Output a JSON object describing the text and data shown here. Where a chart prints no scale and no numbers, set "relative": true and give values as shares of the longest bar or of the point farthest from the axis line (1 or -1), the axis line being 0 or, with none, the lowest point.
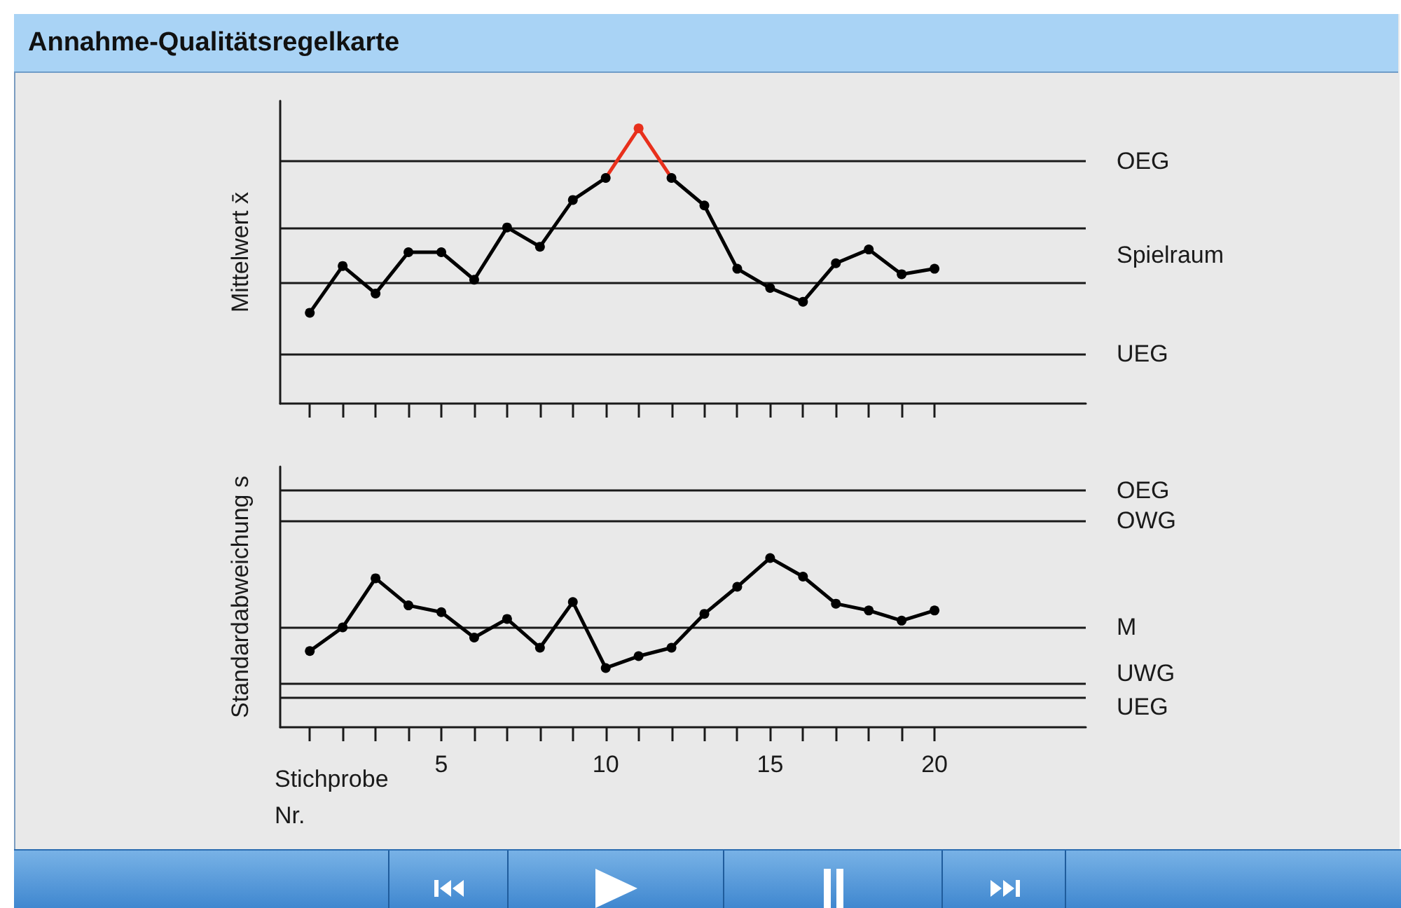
{
  "chart_data": [
    {
      "type": "line",
      "title": "Annahme-Qualitätsregelkarte",
      "ylabel": "Mittelwert x̄",
      "relative": true,
      "x": [
        1,
        2,
        3,
        4,
        5,
        6,
        7,
        8,
        9,
        10,
        11,
        12,
        13,
        14,
        15,
        16,
        17,
        18,
        19,
        20
      ],
      "xlim": [
        0.1,
        24.6
      ],
      "xticks": [
        {
          "value": 1,
          "label": null
        },
        {
          "value": 2,
          "label": null
        },
        {
          "value": 3,
          "label": null
        },
        {
          "value": 4,
          "label": null
        },
        5,
        {
          "value": 6,
          "label": null
        },
        {
          "value": 7,
          "label": null
        },
        {
          "value": 8,
          "label": null
        },
        {
          "value": 9,
          "label": null
        },
        10,
        {
          "value": 11,
          "label": null
        },
        {
          "value": 12,
          "label": null
        },
        {
          "value": 13,
          "label": null
        },
        {
          "value": 14,
          "label": null
        },
        15,
        {
          "value": 16,
          "label": null
        },
        {
          "value": 17,
          "label": null
        },
        {
          "value": 18,
          "label": null
        },
        {
          "value": 19,
          "label": null
        },
        20
      ],
      "tick_labels": false,
      "marker": "circle",
      "grid": false,
      "series": [
        {
          "color": "#000000",
          "colors": [
            "#000000",
            "#000000",
            "#000000",
            "#000000",
            "#000000",
            "#000000",
            "#000000",
            "#000000",
            "#000000",
            "#000000",
            "#e8301c",
            "#000000",
            "#000000",
            "#000000",
            "#000000",
            "#000000",
            "#000000",
            "#000000",
            "#000000",
            "#000000"
          ],
          "values": [
            0.33,
            0.5,
            0.4,
            0.55,
            0.55,
            0.45,
            0.64,
            0.57,
            0.74,
            0.82,
            1,
            0.82,
            0.72,
            0.49,
            0.42,
            0.37,
            0.51,
            0.56,
            0.47,
            0.49
          ]
        }
      ],
      "ref_lines": [
        {
          "axis": "y",
          "value": 0.88,
          "label": "OEG"
        },
        {
          "axis": "y",
          "value": 0.64,
          "label": null
        },
        {
          "axis": "y",
          "value": 0.44,
          "label": null
        },
        {
          "axis": "y",
          "value": 0.18,
          "label": "UEG"
        }
      ],
      "annotations": [
        "Spielraum"
      ]
    },
    {
      "type": "line",
      "ylabel": "Standardabweichung s",
      "xlabel": "Stichprobe Nr.",
      "relative": true,
      "x": [
        1,
        2,
        3,
        4,
        5,
        6,
        7,
        8,
        9,
        10,
        11,
        12,
        13,
        14,
        15,
        16,
        17,
        18,
        19,
        20
      ],
      "xlim": [
        0.1,
        24.6
      ],
      "xticks": [
        {
          "value": 1,
          "label": null
        },
        {
          "value": 2,
          "label": null
        },
        {
          "value": 3,
          "label": null
        },
        {
          "value": 4,
          "label": null
        },
        5,
        {
          "value": 6,
          "label": null
        },
        {
          "value": 7,
          "label": null
        },
        {
          "value": 8,
          "label": null
        },
        {
          "value": 9,
          "label": null
        },
        10,
        {
          "value": 11,
          "label": null
        },
        {
          "value": 12,
          "label": null
        },
        {
          "value": 13,
          "label": null
        },
        {
          "value": 14,
          "label": null
        },
        15,
        {
          "value": 16,
          "label": null
        },
        {
          "value": 17,
          "label": null
        },
        {
          "value": 18,
          "label": null
        },
        {
          "value": 19,
          "label": null
        },
        20
      ],
      "tick_labels": "x",
      "marker": "circle",
      "grid": false,
      "series": [
        {
          "color": "#000000",
          "values": [
            0.45,
            0.59,
            0.88,
            0.72,
            0.68,
            0.53,
            0.64,
            0.47,
            0.74,
            0.35,
            0.42,
            0.47,
            0.67,
            0.83,
            1,
            0.89,
            0.73,
            0.69,
            0.63,
            0.69
          ]
        }
      ],
      "ref_lines": [
        {
          "axis": "y",
          "value": 1.4,
          "label": "OEG"
        },
        {
          "axis": "y",
          "value": 1.22,
          "label": "OWG"
        },
        {
          "axis": "y",
          "value": 0.59,
          "label": "M"
        },
        {
          "axis": "y",
          "value": 0.26,
          "label": "UWG"
        },
        {
          "axis": "y",
          "value": 0.18,
          "label": "UEG"
        }
      ]
    }
  ]
}
